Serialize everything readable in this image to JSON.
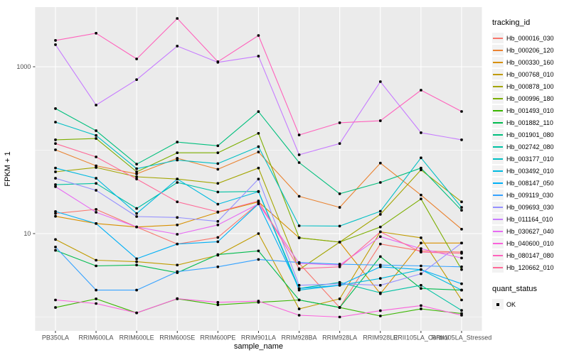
{
  "chart_data": {
    "type": "line",
    "title": "",
    "xlabel": "sample_name",
    "ylabel": "FPKM + 1",
    "y_scale": "log10",
    "y_ticks": [
      {
        "label": "1000",
        "value": 1000
      },
      {
        "label": "10",
        "value": 10
      }
    ],
    "y_minor_breaks": [
      1,
      100
    ],
    "ylim": [
      0.68,
      5200
    ],
    "grid": true,
    "panel_bg": "#EBEBEB",
    "grid_color": "#FFFFFF",
    "tick_label_color": "#4D4D4D",
    "point_color": "#000000",
    "legend_position": "right",
    "categories": [
      "PB350LA",
      "RRIM600LA",
      "RRIM600LE",
      "RRIM600SE",
      "RRIM600PE",
      "RRIM901LA",
      "RRIM928BA",
      "RRIM928LA",
      "RRIM928LE",
      "RRII105LA_Control",
      "RRII105LA_Stressed"
    ],
    "series": [
      {
        "name": "Hb_000016_030",
        "color": "#F8766D",
        "values": [
          17.4,
          19.5,
          12,
          7.5,
          9,
          23,
          4.4,
          1.3,
          7.5,
          6.2,
          6.0
        ]
      },
      {
        "name": "Hb_000206_120",
        "color": "#EA8331",
        "values": [
          101,
          65,
          52,
          80,
          59,
          95,
          28,
          20.6,
          70,
          29,
          11.3
        ]
      },
      {
        "name": "Hb_000330_160",
        "color": "#D89000",
        "values": [
          16.1,
          13.2,
          12,
          12.7,
          18,
          24,
          8.9,
          7.9,
          1.9,
          7.7,
          7.7
        ]
      },
      {
        "name": "Hb_000768_010",
        "color": "#C09B00",
        "values": [
          8.5,
          4.8,
          4.6,
          4.2,
          5.5,
          10,
          1.25,
          1.65,
          10.5,
          8.9,
          1.6
        ]
      },
      {
        "name": "Hb_000878_100",
        "color": "#A3A500",
        "values": [
          55,
          62,
          48,
          45,
          40,
          61,
          3.7,
          7.9,
          17,
          58,
          24
        ]
      },
      {
        "name": "Hb_000996_180",
        "color": "#7CAE00",
        "values": [
          133,
          138,
          55,
          93,
          93,
          159,
          8.9,
          7.9,
          12,
          26,
          3.7
        ]
      },
      {
        "name": "Hb_001493_010",
        "color": "#39B600",
        "values": [
          1.3,
          1.65,
          1.12,
          1.65,
          1.4,
          1.5,
          1.6,
          1.3,
          1.03,
          1.25,
          1.1
        ]
      },
      {
        "name": "Hb_001882_110",
        "color": "#00BB4E",
        "values": [
          6.3,
          4.1,
          4.2,
          3.4,
          5.6,
          6.2,
          1.6,
          1.3,
          5.3,
          2.2,
          2.1
        ]
      },
      {
        "name": "Hb_001901_080",
        "color": "#00BF7D",
        "values": [
          315,
          171,
          68,
          125,
          113,
          290,
          71,
          30,
          41,
          61,
          19
        ]
      },
      {
        "name": "Hb_002742_080",
        "color": "#00C1A3",
        "values": [
          38.6,
          40,
          20,
          41,
          31.5,
          32,
          2.2,
          2.6,
          1.95,
          2.4,
          1.2
        ]
      },
      {
        "name": "Hb_003177_010",
        "color": "#00BFC4",
        "values": [
          217,
          150,
          60,
          76,
          69,
          110,
          12.4,
          12.3,
          18.5,
          81,
          20.6
        ]
      },
      {
        "name": "Hb_003492_010",
        "color": "#00BAE0",
        "values": [
          61,
          46,
          17.4,
          45,
          22.5,
          31.8,
          2.1,
          2.4,
          2.9,
          3.7,
          2.1
        ]
      },
      {
        "name": "Hb_008147_050",
        "color": "#00B0F6",
        "values": [
          18.4,
          13.2,
          5.0,
          7.5,
          8.0,
          22.7,
          2.2,
          2.4,
          4.0,
          3.7,
          2.5
        ]
      },
      {
        "name": "Hb_009119_030",
        "color": "#35A2FF",
        "values": [
          6.9,
          2.1,
          2.1,
          3.5,
          4.0,
          4.9,
          4.5,
          4.3,
          4.2,
          4.1,
          4.0
        ]
      },
      {
        "name": "Hb_009693_030",
        "color": "#9590FF",
        "values": [
          46,
          33,
          16,
          15.6,
          14,
          45,
          2.4,
          2.5,
          2.4,
          3.3,
          7.7
        ]
      },
      {
        "name": "Hb_011164_010",
        "color": "#C77CFF",
        "values": [
          1840,
          347,
          700,
          1770,
          1130,
          1340,
          88,
          120,
          663,
          162,
          133
        ]
      },
      {
        "name": "Hb_030627_040",
        "color": "#E76BF3",
        "values": [
          36.5,
          18,
          12,
          9.8,
          12.7,
          22.7,
          4.4,
          4.2,
          9.2,
          6.6,
          5.1
        ]
      },
      {
        "name": "Hb_040600_010",
        "color": "#FA62DB",
        "values": [
          1.6,
          1.45,
          1.12,
          1.66,
          1.5,
          1.55,
          1.05,
          1.0,
          1.19,
          1.37,
          1.05
        ]
      },
      {
        "name": "Hb_080147_080",
        "color": "#FF62BC",
        "values": [
          2070,
          2520,
          1240,
          3790,
          1150,
          2370,
          152,
          213,
          225,
          524,
          291
        ]
      },
      {
        "name": "Hb_120662_010",
        "color": "#FF6A98",
        "values": [
          120,
          83,
          45,
          24,
          18.2,
          24.6,
          3.8,
          4.0,
          10.5,
          6.0,
          5.8
        ]
      }
    ],
    "legend": {
      "title": "tracking_id"
    },
    "quant_status": {
      "title": "quant_status",
      "entries": [
        {
          "label": "OK",
          "shape": "square",
          "color": "#000000"
        }
      ]
    }
  }
}
